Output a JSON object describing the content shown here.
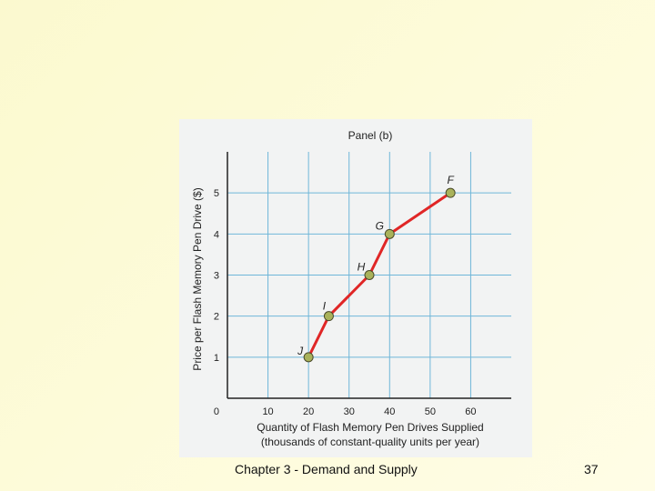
{
  "slide": {
    "footer": "Chapter 3 - Demand and Supply",
    "page_number": "37"
  },
  "colors": {
    "panel_bg": "#f2f3f3",
    "grid": "#6fb6d8",
    "supply_line": "#e02626",
    "point_fill": "#a9b25a",
    "axis": "#222222"
  },
  "chart_data": {
    "type": "line",
    "title": "Panel (b)",
    "xlabel": "Quantity of Flash Memory Pen Drives Supplied",
    "xlabel_sub": "(thousands of constant-quality units per year)",
    "ylabel": "Price per Flash Memory Pen Drive ($)",
    "origin_label": "0",
    "xlim": [
      0,
      70
    ],
    "ylim": [
      0,
      6
    ],
    "x_ticks": [
      10,
      20,
      30,
      40,
      50,
      60
    ],
    "y_ticks": [
      1,
      2,
      3,
      4,
      5
    ],
    "grid": true,
    "series": [
      {
        "points": [
          {
            "label": "J",
            "x": 20,
            "y": 1
          },
          {
            "label": "I",
            "x": 25,
            "y": 2
          },
          {
            "label": "H",
            "x": 35,
            "y": 3
          },
          {
            "label": "G",
            "x": 40,
            "y": 4
          },
          {
            "label": "F",
            "x": 55,
            "y": 5
          }
        ]
      }
    ]
  }
}
